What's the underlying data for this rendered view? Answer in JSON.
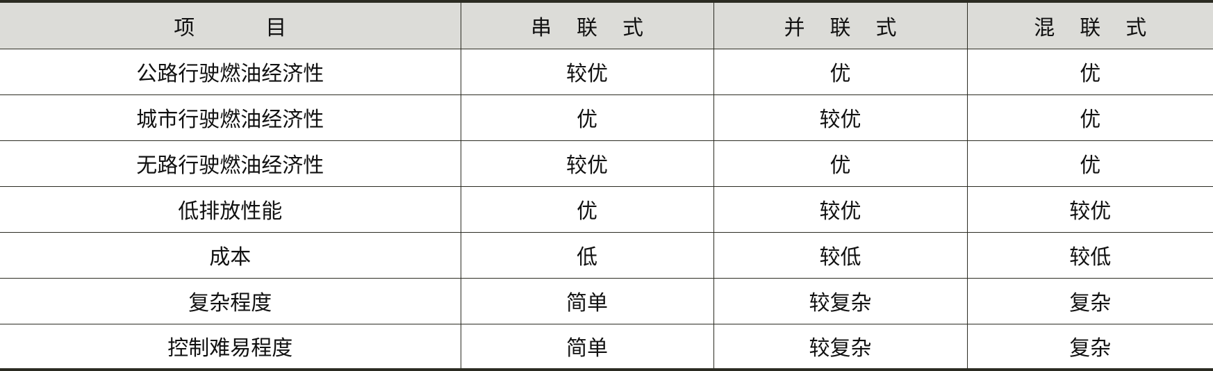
{
  "table": {
    "headers": [
      "项　目",
      "串联式",
      "并联式",
      "混联式"
    ],
    "rows": [
      [
        "公路行驶燃油经济性",
        "较优",
        "优",
        "优"
      ],
      [
        "城市行驶燃油经济性",
        "优",
        "较优",
        "优"
      ],
      [
        "无路行驶燃油经济性",
        "较优",
        "优",
        "优"
      ],
      [
        "低排放性能",
        "优",
        "较优",
        "较优"
      ],
      [
        "成本",
        "低",
        "较低",
        "较低"
      ],
      [
        "复杂程度",
        "简单",
        "较复杂",
        "复杂"
      ],
      [
        "控制难易程度",
        "简单",
        "较复杂",
        "复杂"
      ]
    ],
    "header_bg": "#dcdcd8"
  }
}
